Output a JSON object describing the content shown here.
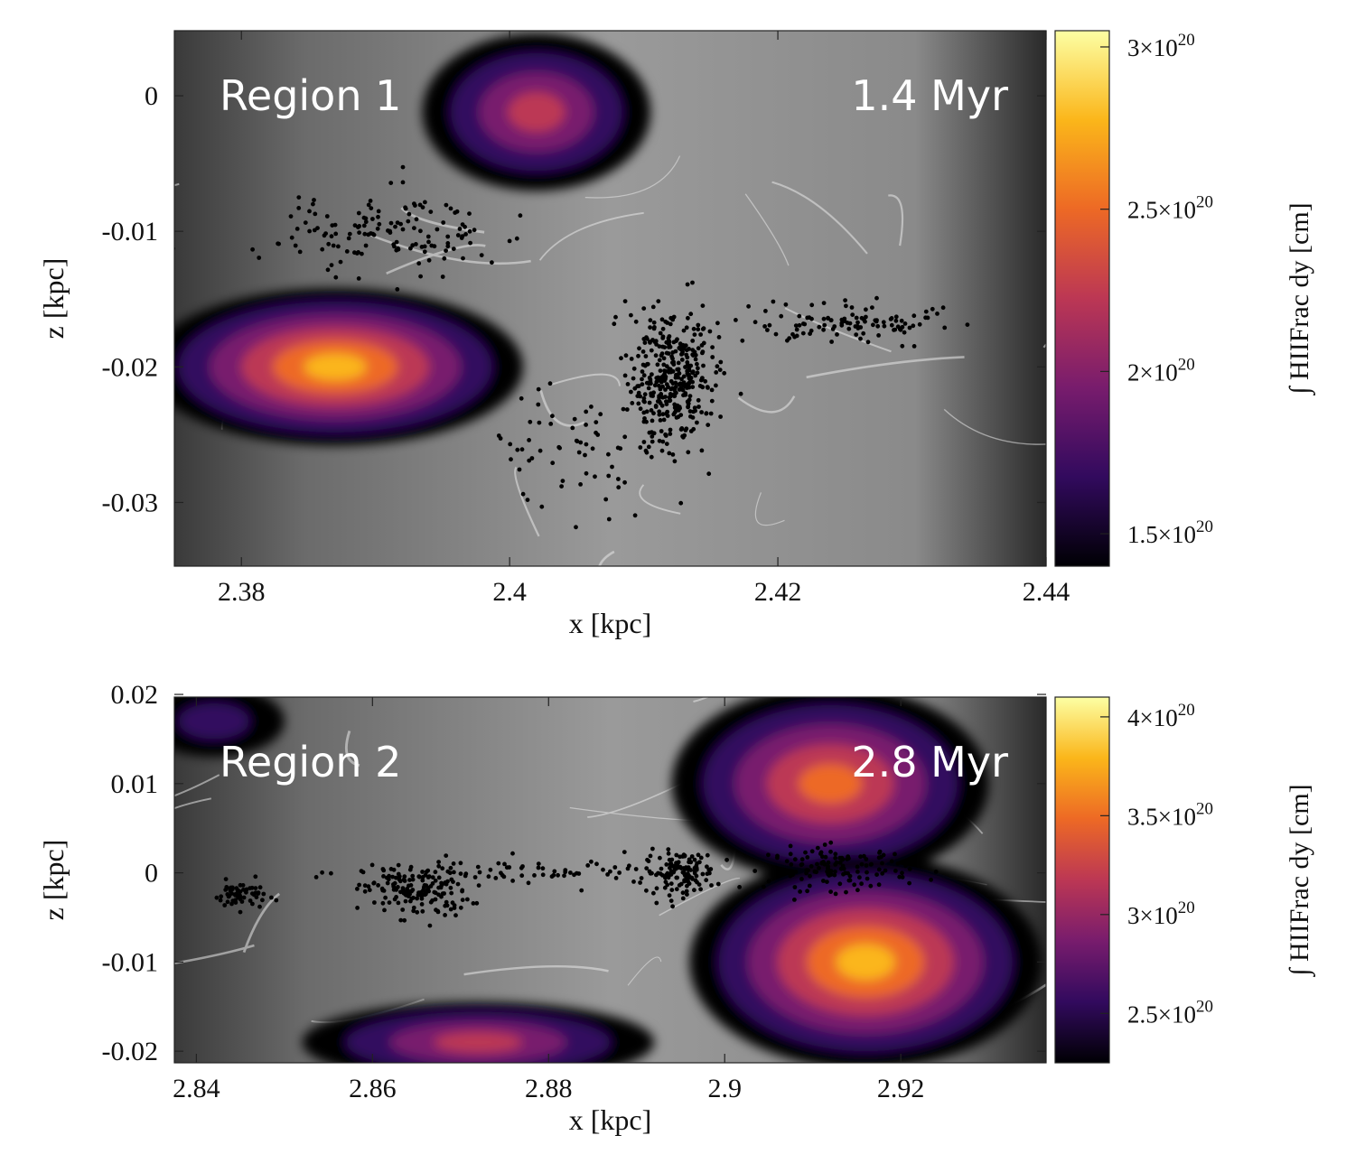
{
  "chart_data": [
    {
      "type": "heatmap",
      "region_label": "Region 1",
      "time_label": "1.4 Myr",
      "xlabel": "x [kpc]",
      "ylabel": "z [kpc]",
      "xlim": [
        2.375,
        2.44
      ],
      "ylim": [
        -0.0347,
        0.0048
      ],
      "x_ticks": [
        {
          "value": 2.38,
          "label": "2.38"
        },
        {
          "value": 2.4,
          "label": "2.4"
        },
        {
          "value": 2.42,
          "label": "2.42"
        },
        {
          "value": 2.44,
          "label": "2.44"
        }
      ],
      "y_ticks": [
        {
          "value": 0.0,
          "label": "0"
        },
        {
          "value": -0.01,
          "label": "-0.01"
        },
        {
          "value": -0.02,
          "label": "-0.02"
        },
        {
          "value": -0.03,
          "label": "-0.03"
        }
      ],
      "colorbar": {
        "label": "∫ HIIFrac dy [cm]",
        "range": [
          1.4e+20,
          3.05e+20
        ],
        "ticks": [
          {
            "value": 3e+20,
            "base": "3×10",
            "exp": "20"
          },
          {
            "value": 2.5e+20,
            "base": "2.5×10",
            "exp": "20"
          },
          {
            "value": 2e+20,
            "base": "2×10",
            "exp": "20"
          },
          {
            "value": 1.5e+20,
            "base": "1.5×10",
            "exp": "20"
          }
        ],
        "colormap": [
          "#000004",
          "#320a5e",
          "#781c6d",
          "#bc3754",
          "#ed6925",
          "#fbb61a",
          "#fcffa4"
        ]
      },
      "ionized_regions": [
        {
          "cx": 2.402,
          "cz": -0.0012,
          "rx": 0.0085,
          "rz": 0.0058,
          "peak": 0.45
        },
        {
          "cx": 2.387,
          "cz": -0.02,
          "rx": 0.014,
          "rz": 0.0058,
          "peak": 0.8
        }
      ],
      "star_clusters": [
        {
          "cx": 2.412,
          "cz": -0.021,
          "sx": 0.0016,
          "sz": 0.0026,
          "n": 380
        },
        {
          "cx": 2.391,
          "cz": -0.01,
          "sx": 0.004,
          "sz": 0.0015,
          "n": 140
        },
        {
          "cx": 2.425,
          "cz": -0.0168,
          "sx": 0.0045,
          "sz": 0.0008,
          "n": 110
        },
        {
          "cx": 2.405,
          "cz": -0.026,
          "sx": 0.003,
          "sz": 0.002,
          "n": 60
        }
      ]
    },
    {
      "type": "heatmap",
      "region_label": "Region 2",
      "time_label": "2.8 Myr",
      "xlabel": "x [kpc]",
      "ylabel": "z [kpc]",
      "xlim": [
        2.8375,
        2.9365
      ],
      "ylim": [
        -0.0213,
        0.0197
      ],
      "x_ticks": [
        {
          "value": 2.84,
          "label": "2.84"
        },
        {
          "value": 2.86,
          "label": "2.86"
        },
        {
          "value": 2.88,
          "label": "2.88"
        },
        {
          "value": 2.9,
          "label": "2.9"
        },
        {
          "value": 2.92,
          "label": "2.92"
        }
      ],
      "y_ticks": [
        {
          "value": 0.02,
          "label": "0.02"
        },
        {
          "value": 0.01,
          "label": "0.01"
        },
        {
          "value": 0.0,
          "label": "0"
        },
        {
          "value": -0.01,
          "label": "-0.01"
        },
        {
          "value": -0.02,
          "label": "-0.02"
        }
      ],
      "colorbar": {
        "label": "∫ HIIFrac dy [cm]",
        "range": [
          2.25e+20,
          4.1e+20
        ],
        "ticks": [
          {
            "value": 4e+20,
            "base": "4×10",
            "exp": "20"
          },
          {
            "value": 3.5e+20,
            "base": "3.5×10",
            "exp": "20"
          },
          {
            "value": 3e+20,
            "base": "3×10",
            "exp": "20"
          },
          {
            "value": 2.5e+20,
            "base": "2.5×10",
            "exp": "20"
          }
        ],
        "colormap": [
          "#000004",
          "#320a5e",
          "#781c6d",
          "#bc3754",
          "#ed6925",
          "#fbb61a",
          "#fcffa4"
        ]
      },
      "ionized_regions": [
        {
          "cx": 2.912,
          "cz": 0.01,
          "rx": 0.018,
          "rz": 0.011,
          "peak": 0.7
        },
        {
          "cx": 2.916,
          "cz": -0.01,
          "rx": 0.02,
          "rz": 0.012,
          "peak": 0.75
        },
        {
          "cx": 2.872,
          "cz": -0.019,
          "rx": 0.02,
          "rz": 0.0045,
          "peak": 0.55
        },
        {
          "cx": 2.842,
          "cz": 0.017,
          "rx": 0.008,
          "rz": 0.004,
          "peak": 0.15
        }
      ],
      "star_clusters": [
        {
          "cx": 2.865,
          "cz": -0.002,
          "sx": 0.003,
          "sz": 0.0015,
          "n": 170
        },
        {
          "cx": 2.895,
          "cz": 0.0,
          "sx": 0.002,
          "sz": 0.0012,
          "n": 120
        },
        {
          "cx": 2.913,
          "cz": 0.0005,
          "sx": 0.004,
          "sz": 0.0012,
          "n": 130
        },
        {
          "cx": 2.845,
          "cz": -0.0025,
          "sx": 0.0015,
          "sz": 0.0008,
          "n": 60
        },
        {
          "cx": 2.88,
          "cz": 0.0,
          "sx": 0.01,
          "sz": 0.0008,
          "n": 70
        }
      ]
    }
  ]
}
